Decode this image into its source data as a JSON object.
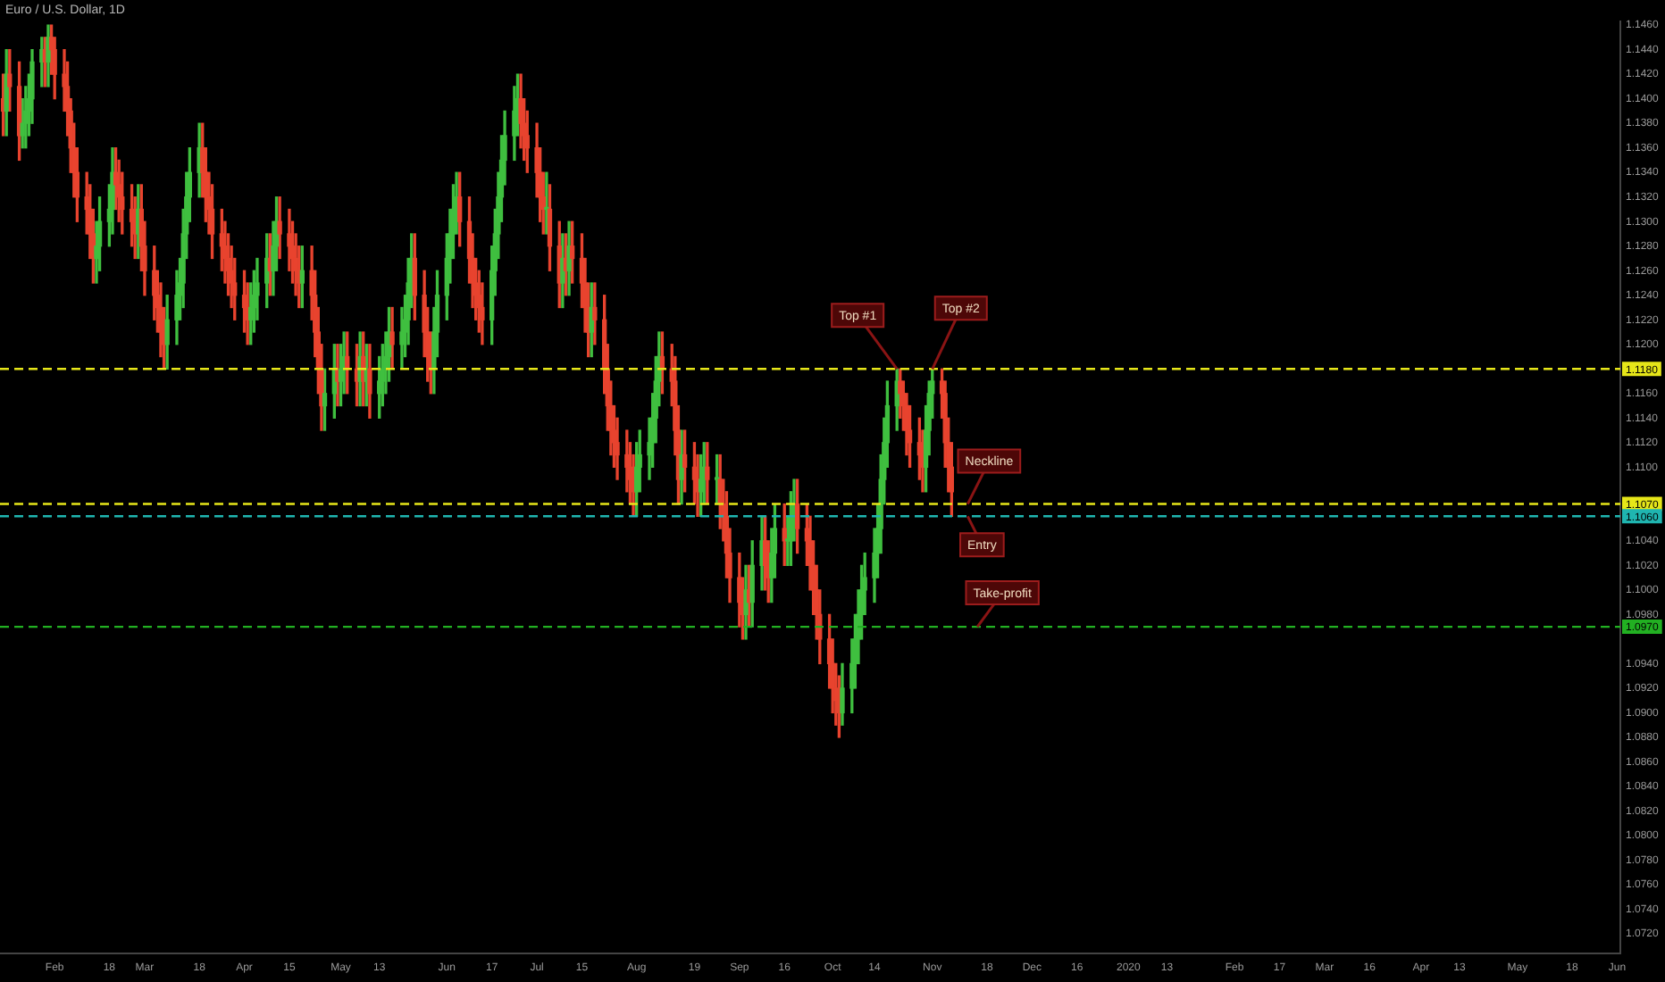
{
  "chart_data": {
    "type": "candlestick",
    "title": "Euro / U.S. Dollar, 1D",
    "x": [
      "2019-01-16",
      "2019-01-17",
      "2019-01-18",
      "2019-01-21",
      "2019-01-22",
      "2019-01-23",
      "2019-01-24",
      "2019-01-25",
      "2019-01-28",
      "2019-01-29",
      "2019-01-30",
      "2019-01-31",
      "2019-02-01",
      "2019-02-04",
      "2019-02-05",
      "2019-02-06",
      "2019-02-07",
      "2019-02-08",
      "2019-02-11",
      "2019-02-12",
      "2019-02-13",
      "2019-02-14",
      "2019-02-15",
      "2019-02-18",
      "2019-02-19",
      "2019-02-20",
      "2019-02-21",
      "2019-02-22",
      "2019-02-25",
      "2019-02-26",
      "2019-02-27",
      "2019-02-28",
      "2019-03-01",
      "2019-03-04",
      "2019-03-05",
      "2019-03-06",
      "2019-03-07",
      "2019-03-08",
      "2019-03-11",
      "2019-03-12",
      "2019-03-13",
      "2019-03-14",
      "2019-03-15",
      "2019-03-18",
      "2019-03-19",
      "2019-03-20",
      "2019-03-21",
      "2019-03-22",
      "2019-03-25",
      "2019-03-26",
      "2019-03-27",
      "2019-03-28",
      "2019-03-29",
      "2019-04-01",
      "2019-04-02",
      "2019-04-03",
      "2019-04-04",
      "2019-04-05",
      "2019-04-08",
      "2019-04-09",
      "2019-04-10",
      "2019-04-11",
      "2019-04-12",
      "2019-04-15",
      "2019-04-16",
      "2019-04-17",
      "2019-04-18",
      "2019-04-19",
      "2019-04-22",
      "2019-04-23",
      "2019-04-24",
      "2019-04-25",
      "2019-04-26",
      "2019-04-29",
      "2019-04-30",
      "2019-05-01",
      "2019-05-02",
      "2019-05-03",
      "2019-05-06",
      "2019-05-07",
      "2019-05-08",
      "2019-05-09",
      "2019-05-10",
      "2019-05-13",
      "2019-05-14",
      "2019-05-15",
      "2019-05-16",
      "2019-05-17",
      "2019-05-20",
      "2019-05-21",
      "2019-05-22",
      "2019-05-23",
      "2019-05-24",
      "2019-05-27",
      "2019-05-28",
      "2019-05-29",
      "2019-05-30",
      "2019-05-31",
      "2019-06-03",
      "2019-06-04",
      "2019-06-05",
      "2019-06-06",
      "2019-06-07",
      "2019-06-10",
      "2019-06-11",
      "2019-06-12",
      "2019-06-13",
      "2019-06-14",
      "2019-06-17",
      "2019-06-18",
      "2019-06-19",
      "2019-06-20",
      "2019-06-21",
      "2019-06-24",
      "2019-06-25",
      "2019-06-26",
      "2019-06-27",
      "2019-06-28",
      "2019-07-01",
      "2019-07-02",
      "2019-07-03",
      "2019-07-04",
      "2019-07-05",
      "2019-07-08",
      "2019-07-09",
      "2019-07-10",
      "2019-07-11",
      "2019-07-12",
      "2019-07-15",
      "2019-07-16",
      "2019-07-17",
      "2019-07-18",
      "2019-07-19",
      "2019-07-22",
      "2019-07-23",
      "2019-07-24",
      "2019-07-25",
      "2019-07-26",
      "2019-07-29",
      "2019-07-30",
      "2019-07-31",
      "2019-08-01",
      "2019-08-02",
      "2019-08-05",
      "2019-08-06",
      "2019-08-07",
      "2019-08-08",
      "2019-08-09",
      "2019-08-12",
      "2019-08-13",
      "2019-08-14",
      "2019-08-15",
      "2019-08-16",
      "2019-08-19",
      "2019-08-20",
      "2019-08-21",
      "2019-08-22",
      "2019-08-23",
      "2019-08-26",
      "2019-08-27",
      "2019-08-28",
      "2019-08-29",
      "2019-08-30",
      "2019-09-02",
      "2019-09-03",
      "2019-09-04",
      "2019-09-05",
      "2019-09-06",
      "2019-09-09",
      "2019-09-10",
      "2019-09-11",
      "2019-09-12",
      "2019-09-13",
      "2019-09-16",
      "2019-09-17",
      "2019-09-18",
      "2019-09-19",
      "2019-09-20",
      "2019-09-23",
      "2019-09-24",
      "2019-09-25",
      "2019-09-26",
      "2019-09-27",
      "2019-09-30",
      "2019-10-01",
      "2019-10-02",
      "2019-10-03",
      "2019-10-04",
      "2019-10-07",
      "2019-10-08",
      "2019-10-09",
      "2019-10-10",
      "2019-10-11",
      "2019-10-14",
      "2019-10-15",
      "2019-10-16",
      "2019-10-17",
      "2019-10-18",
      "2019-10-21",
      "2019-10-22",
      "2019-10-23",
      "2019-10-24",
      "2019-10-25",
      "2019-10-28",
      "2019-10-29",
      "2019-10-30",
      "2019-10-31",
      "2019-11-01",
      "2019-11-04",
      "2019-11-05",
      "2019-11-06",
      "2019-11-07"
    ],
    "ohlc": [
      [
        1.14,
        1.142,
        1.137,
        1.139
      ],
      [
        1.139,
        1.144,
        1.137,
        1.142
      ],
      [
        1.142,
        1.144,
        1.139,
        1.141
      ],
      [
        1.141,
        1.143,
        1.135,
        1.137
      ],
      [
        1.137,
        1.14,
        1.136,
        1.138
      ],
      [
        1.138,
        1.141,
        1.136,
        1.139
      ],
      [
        1.139,
        1.142,
        1.137,
        1.14
      ],
      [
        1.14,
        1.144,
        1.138,
        1.143
      ],
      [
        1.143,
        1.145,
        1.141,
        1.144
      ],
      [
        1.144,
        1.145,
        1.141,
        1.143
      ],
      [
        1.143,
        1.146,
        1.141,
        1.145
      ],
      [
        1.145,
        1.146,
        1.142,
        1.144
      ],
      [
        1.144,
        1.145,
        1.14,
        1.142
      ],
      [
        1.142,
        1.144,
        1.139,
        1.141
      ],
      [
        1.141,
        1.143,
        1.137,
        1.139
      ],
      [
        1.139,
        1.14,
        1.134,
        1.136
      ],
      [
        1.136,
        1.138,
        1.132,
        1.134
      ],
      [
        1.134,
        1.136,
        1.13,
        1.132
      ],
      [
        1.132,
        1.134,
        1.129,
        1.131
      ],
      [
        1.131,
        1.133,
        1.127,
        1.129
      ],
      [
        1.129,
        1.131,
        1.125,
        1.127
      ],
      [
        1.127,
        1.13,
        1.125,
        1.128
      ],
      [
        1.128,
        1.132,
        1.126,
        1.13
      ],
      [
        1.13,
        1.133,
        1.128,
        1.131
      ],
      [
        1.131,
        1.136,
        1.129,
        1.134
      ],
      [
        1.134,
        1.136,
        1.131,
        1.133
      ],
      [
        1.133,
        1.135,
        1.13,
        1.132
      ],
      [
        1.132,
        1.134,
        1.129,
        1.131
      ],
      [
        1.131,
        1.133,
        1.128,
        1.13
      ],
      [
        1.13,
        1.132,
        1.127,
        1.129
      ],
      [
        1.129,
        1.133,
        1.127,
        1.131
      ],
      [
        1.131,
        1.133,
        1.126,
        1.128
      ],
      [
        1.128,
        1.13,
        1.124,
        1.126
      ],
      [
        1.126,
        1.128,
        1.122,
        1.124
      ],
      [
        1.124,
        1.126,
        1.121,
        1.123
      ],
      [
        1.123,
        1.125,
        1.119,
        1.121
      ],
      [
        1.121,
        1.123,
        1.118,
        1.12
      ],
      [
        1.12,
        1.124,
        1.118,
        1.122
      ],
      [
        1.122,
        1.126,
        1.12,
        1.124
      ],
      [
        1.124,
        1.127,
        1.122,
        1.125
      ],
      [
        1.125,
        1.131,
        1.123,
        1.129
      ],
      [
        1.129,
        1.134,
        1.127,
        1.132
      ],
      [
        1.132,
        1.136,
        1.13,
        1.134
      ],
      [
        1.134,
        1.138,
        1.132,
        1.136
      ],
      [
        1.136,
        1.138,
        1.132,
        1.134
      ],
      [
        1.134,
        1.136,
        1.13,
        1.132
      ],
      [
        1.132,
        1.134,
        1.129,
        1.131
      ],
      [
        1.131,
        1.133,
        1.127,
        1.129
      ],
      [
        1.129,
        1.131,
        1.126,
        1.128
      ],
      [
        1.128,
        1.13,
        1.125,
        1.127
      ],
      [
        1.127,
        1.129,
        1.124,
        1.126
      ],
      [
        1.126,
        1.128,
        1.123,
        1.125
      ],
      [
        1.125,
        1.127,
        1.122,
        1.124
      ],
      [
        1.124,
        1.126,
        1.121,
        1.123
      ],
      [
        1.123,
        1.125,
        1.12,
        1.122
      ],
      [
        1.122,
        1.125,
        1.12,
        1.123
      ],
      [
        1.123,
        1.126,
        1.121,
        1.124
      ],
      [
        1.124,
        1.127,
        1.122,
        1.125
      ],
      [
        1.125,
        1.129,
        1.123,
        1.127
      ],
      [
        1.127,
        1.129,
        1.124,
        1.126
      ],
      [
        1.126,
        1.13,
        1.124,
        1.128
      ],
      [
        1.128,
        1.132,
        1.126,
        1.13
      ],
      [
        1.13,
        1.132,
        1.127,
        1.129
      ],
      [
        1.129,
        1.131,
        1.126,
        1.128
      ],
      [
        1.128,
        1.13,
        1.125,
        1.127
      ],
      [
        1.127,
        1.129,
        1.124,
        1.126
      ],
      [
        1.126,
        1.128,
        1.123,
        1.125
      ],
      [
        1.125,
        1.128,
        1.123,
        1.126
      ],
      [
        1.126,
        1.128,
        1.122,
        1.124
      ],
      [
        1.124,
        1.126,
        1.119,
        1.121
      ],
      [
        1.121,
        1.123,
        1.116,
        1.118
      ],
      [
        1.118,
        1.12,
        1.113,
        1.115
      ],
      [
        1.115,
        1.118,
        1.113,
        1.116
      ],
      [
        1.116,
        1.12,
        1.114,
        1.118
      ],
      [
        1.118,
        1.12,
        1.115,
        1.117
      ],
      [
        1.117,
        1.12,
        1.115,
        1.118
      ],
      [
        1.118,
        1.121,
        1.116,
        1.119
      ],
      [
        1.119,
        1.121,
        1.116,
        1.118
      ],
      [
        1.118,
        1.12,
        1.115,
        1.117
      ],
      [
        1.117,
        1.121,
        1.115,
        1.119
      ],
      [
        1.119,
        1.121,
        1.115,
        1.117
      ],
      [
        1.117,
        1.12,
        1.115,
        1.118
      ],
      [
        1.118,
        1.12,
        1.114,
        1.116
      ],
      [
        1.116,
        1.119,
        1.114,
        1.117
      ],
      [
        1.117,
        1.12,
        1.115,
        1.118
      ],
      [
        1.118,
        1.121,
        1.116,
        1.119
      ],
      [
        1.119,
        1.123,
        1.117,
        1.121
      ],
      [
        1.121,
        1.123,
        1.118,
        1.12
      ],
      [
        1.12,
        1.123,
        1.118,
        1.121
      ],
      [
        1.121,
        1.124,
        1.119,
        1.122
      ],
      [
        1.122,
        1.127,
        1.12,
        1.125
      ],
      [
        1.125,
        1.129,
        1.123,
        1.127
      ],
      [
        1.127,
        1.129,
        1.122,
        1.124
      ],
      [
        1.124,
        1.126,
        1.119,
        1.121
      ],
      [
        1.121,
        1.123,
        1.117,
        1.119
      ],
      [
        1.119,
        1.121,
        1.116,
        1.118
      ],
      [
        1.118,
        1.123,
        1.116,
        1.121
      ],
      [
        1.121,
        1.126,
        1.119,
        1.124
      ],
      [
        1.124,
        1.129,
        1.122,
        1.127
      ],
      [
        1.127,
        1.131,
        1.125,
        1.129
      ],
      [
        1.129,
        1.133,
        1.127,
        1.131
      ],
      [
        1.131,
        1.134,
        1.129,
        1.132
      ],
      [
        1.132,
        1.134,
        1.128,
        1.13
      ],
      [
        1.13,
        1.132,
        1.125,
        1.127
      ],
      [
        1.127,
        1.129,
        1.123,
        1.125
      ],
      [
        1.125,
        1.127,
        1.122,
        1.124
      ],
      [
        1.124,
        1.126,
        1.121,
        1.123
      ],
      [
        1.123,
        1.125,
        1.12,
        1.122
      ],
      [
        1.122,
        1.128,
        1.12,
        1.126
      ],
      [
        1.126,
        1.131,
        1.124,
        1.129
      ],
      [
        1.129,
        1.134,
        1.127,
        1.132
      ],
      [
        1.132,
        1.137,
        1.13,
        1.135
      ],
      [
        1.135,
        1.139,
        1.133,
        1.137
      ],
      [
        1.137,
        1.141,
        1.135,
        1.139
      ],
      [
        1.139,
        1.142,
        1.137,
        1.14
      ],
      [
        1.14,
        1.142,
        1.136,
        1.138
      ],
      [
        1.138,
        1.14,
        1.135,
        1.137
      ],
      [
        1.137,
        1.139,
        1.134,
        1.136
      ],
      [
        1.136,
        1.138,
        1.132,
        1.134
      ],
      [
        1.134,
        1.136,
        1.13,
        1.132
      ],
      [
        1.132,
        1.134,
        1.129,
        1.131
      ],
      [
        1.131,
        1.134,
        1.129,
        1.131
      ],
      [
        1.131,
        1.133,
        1.126,
        1.128
      ],
      [
        1.128,
        1.13,
        1.123,
        1.125
      ],
      [
        1.125,
        1.129,
        1.123,
        1.127
      ],
      [
        1.127,
        1.129,
        1.124,
        1.126
      ],
      [
        1.126,
        1.13,
        1.124,
        1.128
      ],
      [
        1.128,
        1.13,
        1.125,
        1.127
      ],
      [
        1.127,
        1.129,
        1.123,
        1.125
      ],
      [
        1.125,
        1.127,
        1.121,
        1.123
      ],
      [
        1.123,
        1.125,
        1.119,
        1.121
      ],
      [
        1.121,
        1.125,
        1.119,
        1.123
      ],
      [
        1.123,
        1.125,
        1.12,
        1.122
      ],
      [
        1.122,
        1.124,
        1.116,
        1.118
      ],
      [
        1.118,
        1.12,
        1.113,
        1.115
      ],
      [
        1.115,
        1.117,
        1.111,
        1.113
      ],
      [
        1.113,
        1.115,
        1.11,
        1.112
      ],
      [
        1.112,
        1.114,
        1.109,
        1.111
      ],
      [
        1.111,
        1.113,
        1.108,
        1.11
      ],
      [
        1.11,
        1.112,
        1.107,
        1.109
      ],
      [
        1.109,
        1.111,
        1.106,
        1.108
      ],
      [
        1.108,
        1.112,
        1.106,
        1.11
      ],
      [
        1.11,
        1.113,
        1.108,
        1.111
      ],
      [
        1.111,
        1.114,
        1.109,
        1.112
      ],
      [
        1.112,
        1.116,
        1.11,
        1.114
      ],
      [
        1.114,
        1.119,
        1.112,
        1.117
      ],
      [
        1.117,
        1.121,
        1.115,
        1.119
      ],
      [
        1.119,
        1.121,
        1.116,
        1.118
      ],
      [
        1.118,
        1.12,
        1.115,
        1.117
      ],
      [
        1.117,
        1.119,
        1.111,
        1.113
      ],
      [
        1.113,
        1.115,
        1.107,
        1.109
      ],
      [
        1.109,
        1.113,
        1.107,
        1.111
      ],
      [
        1.111,
        1.113,
        1.108,
        1.11
      ],
      [
        1.11,
        1.112,
        1.107,
        1.109
      ],
      [
        1.109,
        1.111,
        1.106,
        1.108
      ],
      [
        1.108,
        1.111,
        1.106,
        1.109
      ],
      [
        1.109,
        1.112,
        1.107,
        1.11
      ],
      [
        1.11,
        1.112,
        1.107,
        1.109
      ],
      [
        1.109,
        1.111,
        1.107,
        1.109
      ],
      [
        1.109,
        1.111,
        1.105,
        1.107
      ],
      [
        1.107,
        1.109,
        1.104,
        1.106
      ],
      [
        1.106,
        1.108,
        1.101,
        1.103
      ],
      [
        1.103,
        1.105,
        1.099,
        1.101
      ],
      [
        1.101,
        1.103,
        1.097,
        1.099
      ],
      [
        1.099,
        1.101,
        1.096,
        1.098
      ],
      [
        1.098,
        1.102,
        1.096,
        1.1
      ],
      [
        1.1,
        1.102,
        1.097,
        1.099
      ],
      [
        1.099,
        1.104,
        1.097,
        1.102
      ],
      [
        1.102,
        1.106,
        1.1,
        1.104
      ],
      [
        1.104,
        1.106,
        1.1,
        1.102
      ],
      [
        1.102,
        1.104,
        1.099,
        1.101
      ],
      [
        1.101,
        1.105,
        1.099,
        1.103
      ],
      [
        1.103,
        1.107,
        1.101,
        1.105
      ],
      [
        1.105,
        1.107,
        1.102,
        1.104
      ],
      [
        1.104,
        1.106,
        1.102,
        1.104
      ],
      [
        1.104,
        1.108,
        1.102,
        1.106
      ],
      [
        1.106,
        1.109,
        1.104,
        1.107
      ],
      [
        1.107,
        1.109,
        1.103,
        1.105
      ],
      [
        1.105,
        1.107,
        1.102,
        1.104
      ],
      [
        1.104,
        1.106,
        1.1,
        1.102
      ],
      [
        1.102,
        1.104,
        1.098,
        1.1
      ],
      [
        1.1,
        1.102,
        1.096,
        1.098
      ],
      [
        1.098,
        1.1,
        1.094,
        1.096
      ],
      [
        1.096,
        1.098,
        1.092,
        1.094
      ],
      [
        1.094,
        1.096,
        1.09,
        1.092
      ],
      [
        1.092,
        1.094,
        1.089,
        1.091
      ],
      [
        1.091,
        1.093,
        1.088,
        1.09
      ],
      [
        1.09,
        1.094,
        1.089,
        1.092
      ],
      [
        1.092,
        1.096,
        1.09,
        1.094
      ],
      [
        1.094,
        1.098,
        1.092,
        1.096
      ],
      [
        1.096,
        1.1,
        1.094,
        1.098
      ],
      [
        1.098,
        1.102,
        1.096,
        1.1
      ],
      [
        1.1,
        1.103,
        1.098,
        1.101
      ],
      [
        1.101,
        1.105,
        1.099,
        1.103
      ],
      [
        1.103,
        1.107,
        1.101,
        1.105
      ],
      [
        1.105,
        1.111,
        1.103,
        1.109
      ],
      [
        1.109,
        1.114,
        1.107,
        1.112
      ],
      [
        1.112,
        1.117,
        1.11,
        1.115
      ],
      [
        1.115,
        1.118,
        1.113,
        1.117
      ],
      [
        1.117,
        1.118,
        1.114,
        1.116
      ],
      [
        1.116,
        1.117,
        1.113,
        1.115
      ],
      [
        1.115,
        1.116,
        1.111,
        1.113
      ],
      [
        1.113,
        1.115,
        1.11,
        1.112
      ],
      [
        1.112,
        1.114,
        1.109,
        1.111
      ],
      [
        1.111,
        1.113,
        1.108,
        1.11
      ],
      [
        1.11,
        1.115,
        1.108,
        1.113
      ],
      [
        1.113,
        1.117,
        1.111,
        1.116
      ],
      [
        1.116,
        1.118,
        1.114,
        1.117
      ],
      [
        1.117,
        1.118,
        1.114,
        1.116
      ],
      [
        1.116,
        1.117,
        1.11,
        1.112
      ],
      [
        1.112,
        1.114,
        1.108,
        1.11
      ],
      [
        1.11,
        1.112,
        1.106,
        1.108
      ]
    ],
    "xlim": [
      "2019-01-15",
      "2020-06-02"
    ],
    "xticks": [
      {
        "value": "2019-02-01",
        "label": "Feb"
      },
      {
        "value": "2019-02-18",
        "label": "18"
      },
      {
        "value": "2019-03-01",
        "label": "Mar"
      },
      {
        "value": "2019-03-18",
        "label": "18"
      },
      {
        "value": "2019-04-01",
        "label": "Apr"
      },
      {
        "value": "2019-04-15",
        "label": "15"
      },
      {
        "value": "2019-05-01",
        "label": "May"
      },
      {
        "value": "2019-05-13",
        "label": "13"
      },
      {
        "value": "2019-06-03",
        "label": "Jun"
      },
      {
        "value": "2019-06-17",
        "label": "17"
      },
      {
        "value": "2019-07-01",
        "label": "Jul"
      },
      {
        "value": "2019-07-15",
        "label": "15"
      },
      {
        "value": "2019-08-01",
        "label": "Aug"
      },
      {
        "value": "2019-08-19",
        "label": "19"
      },
      {
        "value": "2019-09-02",
        "label": "Sep"
      },
      {
        "value": "2019-09-16",
        "label": "16"
      },
      {
        "value": "2019-10-01",
        "label": "Oct"
      },
      {
        "value": "2019-10-14",
        "label": "14"
      },
      {
        "value": "2019-11-01",
        "label": "Nov"
      },
      {
        "value": "2019-11-18",
        "label": "18"
      },
      {
        "value": "2019-12-02",
        "label": "Dec"
      },
      {
        "value": "2019-12-16",
        "label": "16"
      },
      {
        "value": "2020-01-01",
        "label": "2020"
      },
      {
        "value": "2020-01-13",
        "label": "13"
      },
      {
        "value": "2020-02-03",
        "label": "Feb"
      },
      {
        "value": "2020-02-17",
        "label": "17"
      },
      {
        "value": "2020-03-02",
        "label": "Mar"
      },
      {
        "value": "2020-03-16",
        "label": "16"
      },
      {
        "value": "2020-04-01",
        "label": "Apr"
      },
      {
        "value": "2020-04-13",
        "label": "13"
      },
      {
        "value": "2020-05-01",
        "label": "May"
      },
      {
        "value": "2020-05-18",
        "label": "18"
      },
      {
        "value": "2020-06-01",
        "label": "Jun"
      }
    ],
    "ylim": [
      1.0704,
      1.1463
    ],
    "yticks": [
      {
        "value": 1.146,
        "label": "1.1460"
      },
      {
        "value": 1.144,
        "label": "1.1440"
      },
      {
        "value": 1.142,
        "label": "1.1420"
      },
      {
        "value": 1.14,
        "label": "1.1400"
      },
      {
        "value": 1.138,
        "label": "1.1380"
      },
      {
        "value": 1.136,
        "label": "1.1360"
      },
      {
        "value": 1.134,
        "label": "1.1340"
      },
      {
        "value": 1.132,
        "label": "1.1320"
      },
      {
        "value": 1.13,
        "label": "1.1300"
      },
      {
        "value": 1.128,
        "label": "1.1280"
      },
      {
        "value": 1.126,
        "label": "1.1260"
      },
      {
        "value": 1.124,
        "label": "1.1240"
      },
      {
        "value": 1.122,
        "label": "1.1220"
      },
      {
        "value": 1.12,
        "label": "1.1200"
      },
      {
        "value": 1.116,
        "label": "1.1160"
      },
      {
        "value": 1.114,
        "label": "1.1140"
      },
      {
        "value": 1.112,
        "label": "1.1120"
      },
      {
        "value": 1.11,
        "label": "1.1100"
      },
      {
        "value": 1.104,
        "label": "1.1040"
      },
      {
        "value": 1.102,
        "label": "1.1020"
      },
      {
        "value": 1.1,
        "label": "1.1000"
      },
      {
        "value": 1.098,
        "label": "1.0980"
      },
      {
        "value": 1.094,
        "label": "1.0940"
      },
      {
        "value": 1.092,
        "label": "1.0920"
      },
      {
        "value": 1.09,
        "label": "1.0900"
      },
      {
        "value": 1.088,
        "label": "1.0880"
      },
      {
        "value": 1.086,
        "label": "1.0860"
      },
      {
        "value": 1.084,
        "label": "1.0840"
      },
      {
        "value": 1.082,
        "label": "1.0820"
      },
      {
        "value": 1.08,
        "label": "1.0800"
      },
      {
        "value": 1.078,
        "label": "1.0780"
      },
      {
        "value": 1.076,
        "label": "1.0760"
      },
      {
        "value": 1.074,
        "label": "1.0740"
      },
      {
        "value": 1.072,
        "label": "1.0720"
      }
    ],
    "ref_lines": [
      {
        "axis": "y",
        "value": 1.118,
        "label": "1.1180",
        "color": "#e6e619",
        "line_style": "dashed"
      },
      {
        "axis": "y",
        "value": 1.107,
        "label": "1.1070",
        "color": "#e6e619",
        "line_style": "dashed"
      },
      {
        "axis": "y",
        "value": 1.106,
        "label": "1.1060",
        "color": "#1fb5b0",
        "line_style": "dashed"
      },
      {
        "axis": "y",
        "value": 1.097,
        "label": "1.0970",
        "color": "#22b022",
        "line_style": "dashed"
      }
    ],
    "annotations": [
      {
        "text": "Top #1",
        "x": "2019-10-21",
        "y": 1.118
      },
      {
        "text": "Top #2",
        "x": "2019-11-01",
        "y": 1.118
      },
      {
        "text": "Neckline",
        "x": "2019-11-12",
        "y": 1.107
      },
      {
        "text": "Entry",
        "x": "2019-11-12",
        "y": 1.106
      },
      {
        "text": "Take-profit",
        "x": "2019-11-15",
        "y": 1.097
      }
    ],
    "grid": false,
    "legend": false
  }
}
